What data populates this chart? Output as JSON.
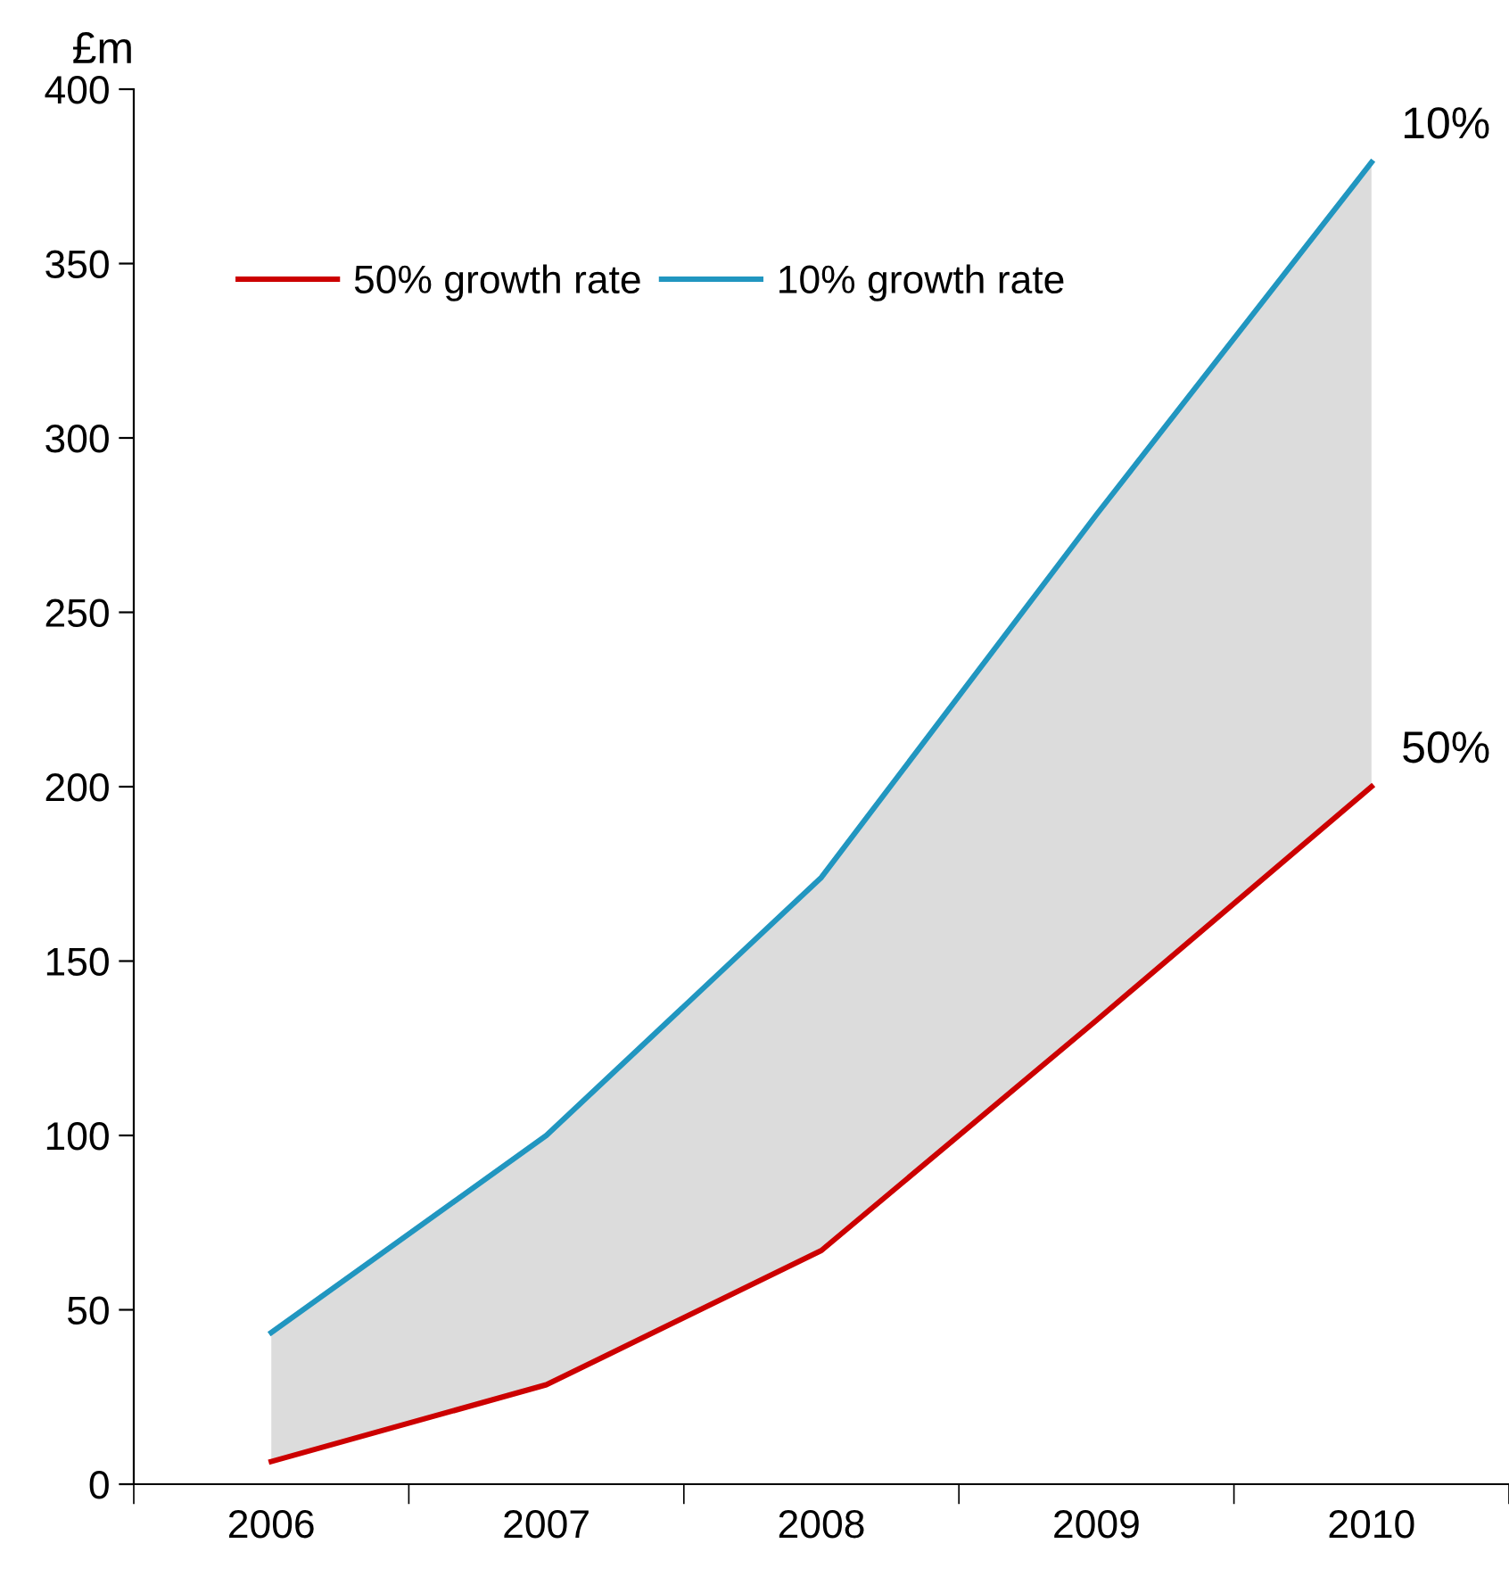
{
  "chart_data": {
    "type": "line",
    "ylabel": "£m",
    "categories": [
      "2006",
      "2007",
      "2008",
      "2009",
      "2010"
    ],
    "series": [
      {
        "name": "50% growth rate",
        "color": "#cc0000",
        "values": [
          6.5,
          28.5,
          67,
          133,
          200
        ]
      },
      {
        "name": "10% growth rate",
        "color": "#2196c0",
        "values": [
          43.5,
          100,
          174,
          278,
          379
        ],
        "lower": [
          6.5,
          28.5,
          67,
          133,
          200
        ],
        "upper": [
          43.5,
          100,
          174,
          278,
          379
        ]
      }
    ],
    "ylim": [
      0,
      400
    ],
    "yticks": [
      0,
      50,
      100,
      150,
      200,
      250,
      300,
      350,
      400
    ],
    "grid": false,
    "legend": "top left",
    "marker": "none",
    "line_style": "solid",
    "annotations": [
      {
        "text": "10%",
        "x": "2010",
        "y": 379
      },
      {
        "text": "50%",
        "x": "2010",
        "y": 200
      }
    ]
  }
}
